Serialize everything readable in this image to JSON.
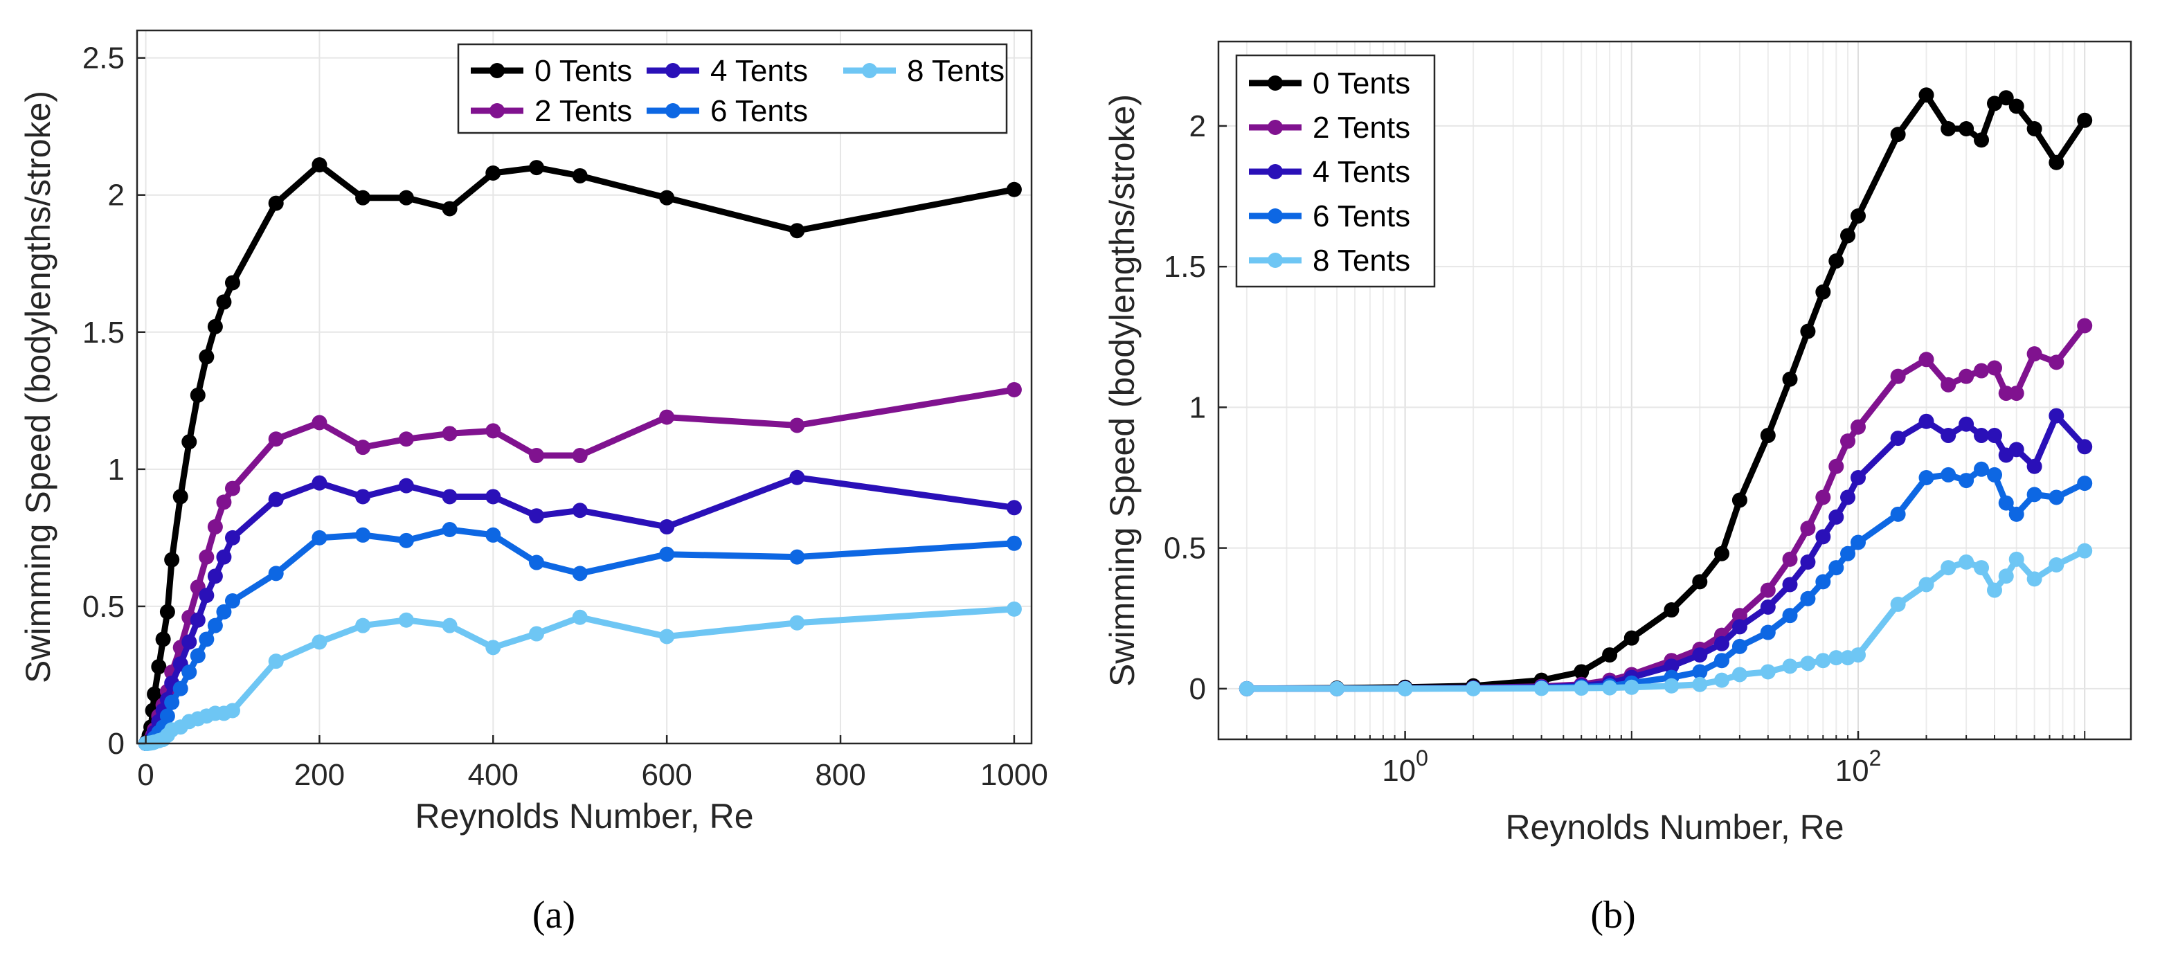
{
  "chart_data": [
    {
      "id": "a",
      "type": "line",
      "caption": "(a)",
      "xlabel": "Reynolds Number, Re",
      "ylabel": "Swimming Speed (bodylengths/stroke)",
      "xscale": "linear",
      "xlim": [
        -10,
        1020
      ],
      "ylim": [
        0,
        2.6
      ],
      "xticks": [
        0,
        200,
        400,
        600,
        800,
        1000
      ],
      "xtick_labels": [
        "0",
        "200",
        "400",
        "600",
        "800",
        "1000"
      ],
      "yticks": [
        0,
        0.5,
        1,
        1.5,
        2,
        2.5
      ],
      "ytick_labels": [
        "0",
        "0.5",
        "1",
        "1.5",
        "2",
        "2.5"
      ],
      "grid": true,
      "legend": {
        "placement": "top-right",
        "columns": 3,
        "order": [
          0,
          2,
          4,
          1,
          3
        ]
      },
      "x": [
        0.2,
        0.5,
        1,
        2,
        4,
        6,
        8,
        10,
        15,
        20,
        25,
        30,
        40,
        50,
        60,
        70,
        80,
        90,
        100,
        150,
        200,
        250,
        300,
        350,
        400,
        450,
        500,
        600,
        750,
        1000
      ],
      "series": [
        {
          "name": "0 Tents",
          "color": "#000000",
          "values": [
            0.0,
            0.002,
            0.005,
            0.01,
            0.03,
            0.06,
            0.12,
            0.18,
            0.28,
            0.38,
            0.48,
            0.67,
            0.9,
            1.1,
            1.27,
            1.41,
            1.52,
            1.61,
            1.68,
            1.97,
            2.11,
            1.99,
            1.99,
            1.95,
            2.08,
            2.1,
            2.07,
            1.99,
            1.87,
            2.02
          ]
        },
        {
          "name": "2 Tents",
          "color": "#80128f",
          "values": [
            0.0,
            0.0,
            0.001,
            0.003,
            0.008,
            0.015,
            0.03,
            0.05,
            0.1,
            0.14,
            0.19,
            0.26,
            0.35,
            0.46,
            0.57,
            0.68,
            0.79,
            0.88,
            0.93,
            1.11,
            1.17,
            1.08,
            1.11,
            1.13,
            1.14,
            1.05,
            1.05,
            1.19,
            1.16,
            1.29
          ]
        },
        {
          "name": "4 Tents",
          "color": "#2a10b8",
          "values": [
            0.0,
            0.0,
            0.001,
            0.002,
            0.005,
            0.01,
            0.02,
            0.04,
            0.08,
            0.12,
            0.16,
            0.22,
            0.29,
            0.37,
            0.45,
            0.54,
            0.61,
            0.68,
            0.75,
            0.89,
            0.95,
            0.9,
            0.94,
            0.9,
            0.9,
            0.83,
            0.85,
            0.79,
            0.97,
            0.86
          ]
        },
        {
          "name": "6 Tents",
          "color": "#0d67e3",
          "values": [
            0.0,
            0.0,
            0.0,
            0.001,
            0.003,
            0.006,
            0.01,
            0.02,
            0.04,
            0.06,
            0.1,
            0.15,
            0.2,
            0.26,
            0.32,
            0.38,
            0.43,
            0.48,
            0.52,
            0.62,
            0.75,
            0.76,
            0.74,
            0.78,
            0.76,
            0.66,
            0.62,
            0.69,
            0.68,
            0.73
          ]
        },
        {
          "name": "8 Tents",
          "color": "#6ec6f4",
          "values": [
            0.0,
            0.0,
            0.0,
            0.0,
            0.001,
            0.002,
            0.003,
            0.005,
            0.01,
            0.015,
            0.03,
            0.05,
            0.06,
            0.08,
            0.09,
            0.1,
            0.11,
            0.11,
            0.12,
            0.3,
            0.37,
            0.43,
            0.45,
            0.43,
            0.35,
            0.4,
            0.46,
            0.39,
            0.44,
            0.49
          ]
        }
      ]
    },
    {
      "id": "b",
      "type": "line",
      "caption": "(b)",
      "xlabel": "Reynolds Number, Re",
      "ylabel": "Swimming Speed (bodylengths/stroke)",
      "xscale": "log",
      "xlim": [
        0.15,
        1600
      ],
      "ylim": [
        -0.18,
        2.3
      ],
      "xticks": [
        1,
        100
      ],
      "xtick_labels": [
        "10",
        "10"
      ],
      "xtick_exponents": [
        "0",
        "2"
      ],
      "yticks": [
        0,
        0.5,
        1,
        1.5,
        2
      ],
      "ytick_labels": [
        "0",
        "0.5",
        "1",
        "1.5",
        "2"
      ],
      "grid": true,
      "minor_grid": true,
      "legend": {
        "placement": "top-left",
        "columns": 1
      },
      "x": [
        0.2,
        0.5,
        1,
        2,
        4,
        6,
        8,
        10,
        15,
        20,
        25,
        30,
        40,
        50,
        60,
        70,
        80,
        90,
        100,
        150,
        200,
        250,
        300,
        350,
        400,
        450,
        500,
        600,
        750,
        1000
      ],
      "series": [
        {
          "name": "0 Tents",
          "color": "#000000",
          "values": [
            0.0,
            0.002,
            0.005,
            0.01,
            0.03,
            0.06,
            0.12,
            0.18,
            0.28,
            0.38,
            0.48,
            0.67,
            0.9,
            1.1,
            1.27,
            1.41,
            1.52,
            1.61,
            1.68,
            1.97,
            2.11,
            1.99,
            1.99,
            1.95,
            2.08,
            2.1,
            2.07,
            1.99,
            1.87,
            2.02
          ]
        },
        {
          "name": "2 Tents",
          "color": "#80128f",
          "values": [
            0.0,
            0.0,
            0.001,
            0.003,
            0.008,
            0.015,
            0.03,
            0.05,
            0.1,
            0.14,
            0.19,
            0.26,
            0.35,
            0.46,
            0.57,
            0.68,
            0.79,
            0.88,
            0.93,
            1.11,
            1.17,
            1.08,
            1.11,
            1.13,
            1.14,
            1.05,
            1.05,
            1.19,
            1.16,
            1.29
          ]
        },
        {
          "name": "4 Tents",
          "color": "#2a10b8",
          "values": [
            0.0,
            0.0,
            0.001,
            0.002,
            0.005,
            0.01,
            0.02,
            0.04,
            0.08,
            0.12,
            0.16,
            0.22,
            0.29,
            0.37,
            0.45,
            0.54,
            0.61,
            0.68,
            0.75,
            0.89,
            0.95,
            0.9,
            0.94,
            0.9,
            0.9,
            0.83,
            0.85,
            0.79,
            0.97,
            0.86
          ]
        },
        {
          "name": "6 Tents",
          "color": "#0d67e3",
          "values": [
            0.0,
            0.0,
            0.0,
            0.001,
            0.003,
            0.006,
            0.01,
            0.02,
            0.04,
            0.06,
            0.1,
            0.15,
            0.2,
            0.26,
            0.32,
            0.38,
            0.43,
            0.48,
            0.52,
            0.62,
            0.75,
            0.76,
            0.74,
            0.78,
            0.76,
            0.66,
            0.62,
            0.69,
            0.68,
            0.73
          ]
        },
        {
          "name": "8 Tents",
          "color": "#6ec6f4",
          "values": [
            0.0,
            0.0,
            0.0,
            0.0,
            0.001,
            0.002,
            0.003,
            0.005,
            0.01,
            0.015,
            0.03,
            0.05,
            0.06,
            0.08,
            0.09,
            0.1,
            0.11,
            0.11,
            0.12,
            0.3,
            0.37,
            0.43,
            0.45,
            0.43,
            0.35,
            0.4,
            0.46,
            0.39,
            0.44,
            0.49
          ]
        }
      ]
    }
  ]
}
